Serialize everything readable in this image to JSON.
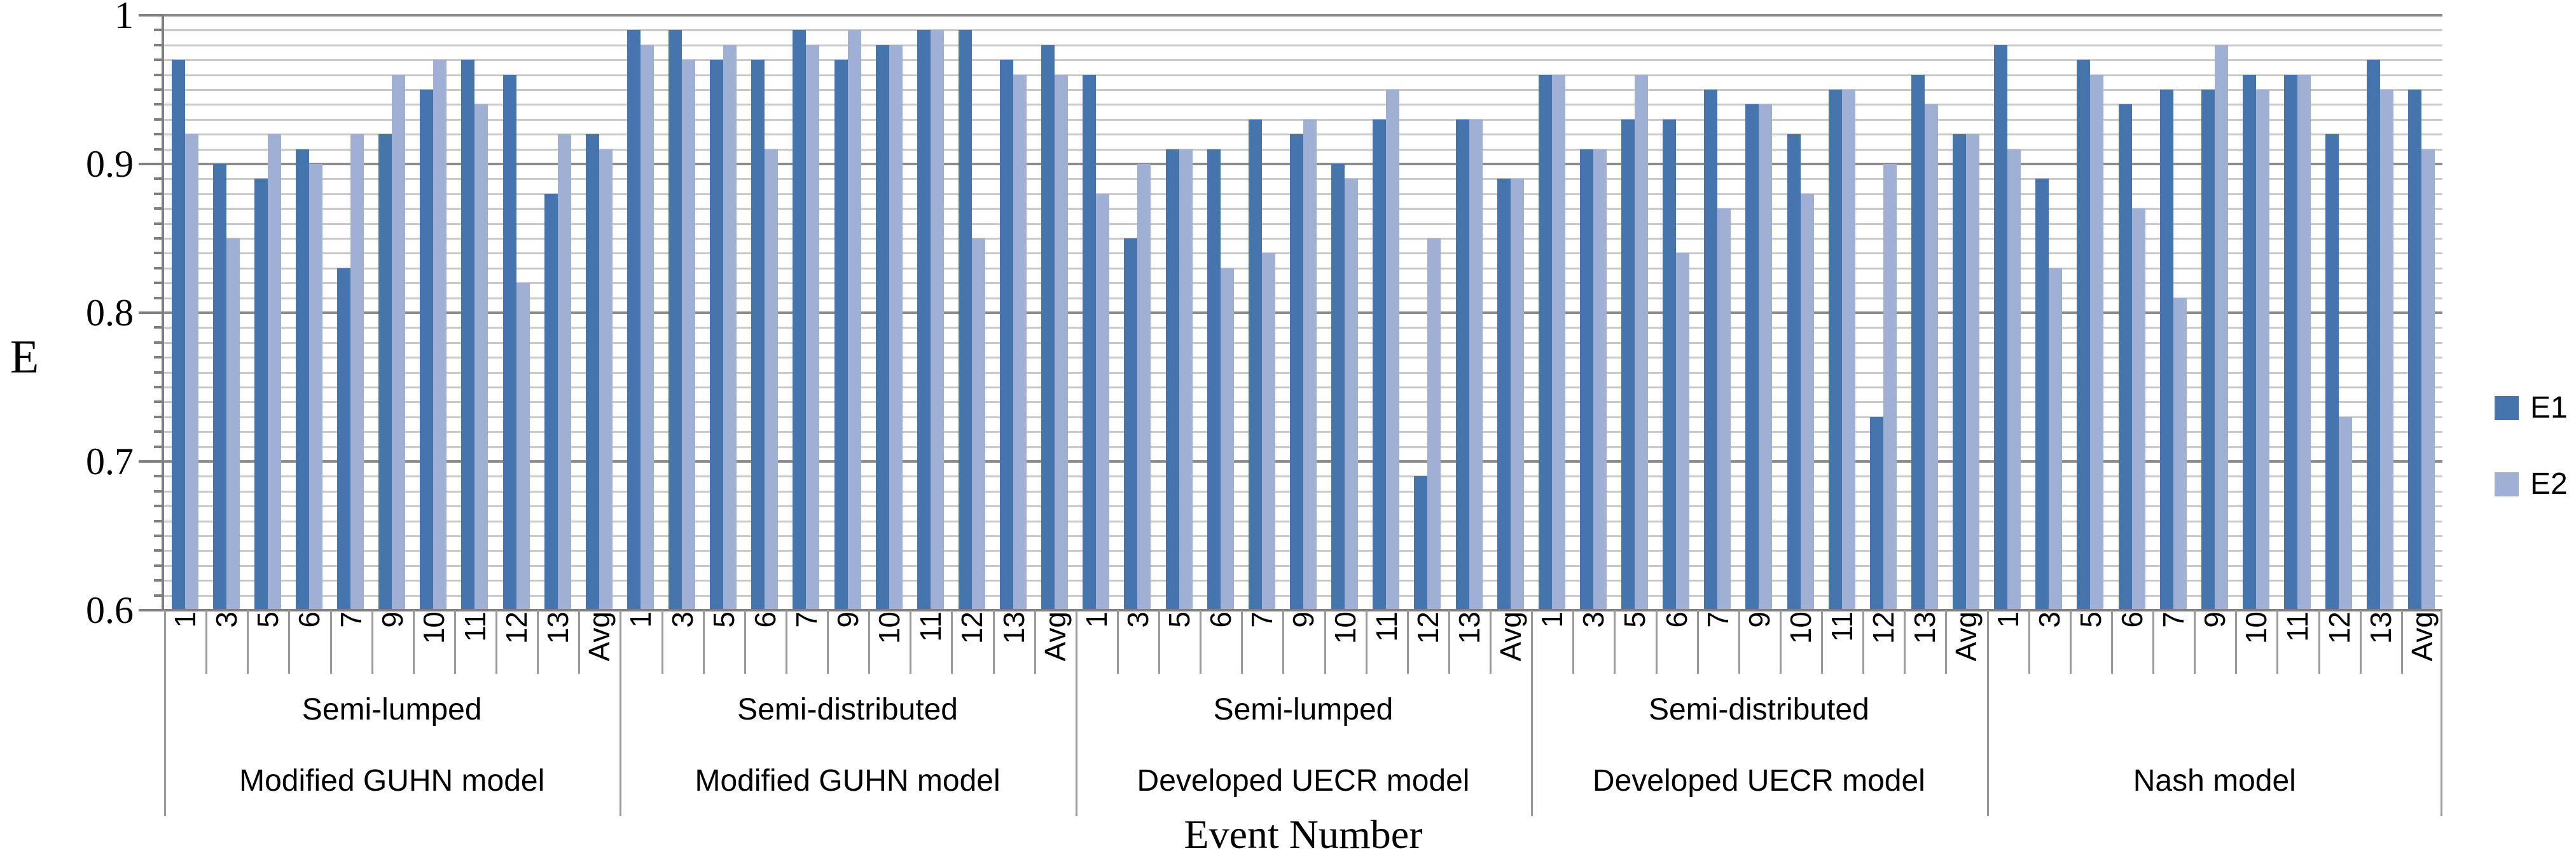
{
  "figure": {
    "background": "#ffffff"
  },
  "colors": {
    "e1": "#4575ac",
    "e2": "#a0b0d5",
    "minor_grid": "#c9c9c9",
    "major_grid": "#8c8c8c",
    "axis": "#7f7f7f",
    "cat_line": "#9a9a9a",
    "text": "#000000"
  },
  "y_axis": {
    "label": "E",
    "tick_labels": [
      "1",
      "0.9",
      "0.8",
      "0.7",
      "0.6"
    ],
    "tick_values": [
      1.0,
      0.9,
      0.8,
      0.7,
      0.6
    ],
    "min": 0.6,
    "max": 1.0,
    "minor_step": 0.01,
    "major_step": 0.1
  },
  "x_axis": {
    "title": "Event Number"
  },
  "legend": {
    "position": "right",
    "items": [
      {
        "label": "E1",
        "color": "#4575ac"
      },
      {
        "label": "E2",
        "color": "#a0b0d5"
      }
    ]
  },
  "chart_data": {
    "type": "bar",
    "title": "",
    "xlabel": "Event Number",
    "ylabel": "E",
    "ylim": [
      0.6,
      1.0
    ],
    "grid": "horizontal, minor every 0.01 (light gray), major every 0.1 (dark gray)",
    "legend_position": "right",
    "categories": [
      "1",
      "3",
      "5",
      "6",
      "7",
      "9",
      "10",
      "11",
      "12",
      "13",
      "Avg"
    ],
    "series_names": [
      "E1",
      "E2"
    ],
    "groups": [
      {
        "sub_label": "Semi-lumped",
        "model_label": "Modified GUHN model",
        "E1": [
          0.97,
          0.9,
          0.89,
          0.91,
          0.83,
          0.92,
          0.95,
          0.97,
          0.96,
          0.88,
          0.92
        ],
        "E2": [
          0.92,
          0.85,
          0.92,
          0.9,
          0.92,
          0.96,
          0.97,
          0.94,
          0.82,
          0.92,
          0.91
        ]
      },
      {
        "sub_label": "Semi-distributed",
        "model_label": "Modified GUHN model",
        "E1": [
          0.99,
          0.99,
          0.97,
          0.97,
          0.99,
          0.97,
          0.98,
          0.99,
          0.99,
          0.97,
          0.98
        ],
        "E2": [
          0.98,
          0.97,
          0.98,
          0.91,
          0.98,
          0.99,
          0.98,
          0.99,
          0.85,
          0.96,
          0.96
        ]
      },
      {
        "sub_label": "Semi-lumped",
        "model_label": "Developed UECR model",
        "E1": [
          0.96,
          0.85,
          0.91,
          0.91,
          0.93,
          0.92,
          0.9,
          0.93,
          0.69,
          0.93,
          0.89
        ],
        "E2": [
          0.88,
          0.9,
          0.91,
          0.83,
          0.84,
          0.93,
          0.89,
          0.95,
          0.85,
          0.93,
          0.89
        ]
      },
      {
        "sub_label": "Semi-distributed",
        "model_label": "Developed UECR model",
        "E1": [
          0.96,
          0.91,
          0.93,
          0.93,
          0.95,
          0.94,
          0.92,
          0.95,
          0.73,
          0.96,
          0.92
        ],
        "E2": [
          0.96,
          0.91,
          0.96,
          0.84,
          0.87,
          0.94,
          0.88,
          0.95,
          0.9,
          0.94,
          0.92
        ]
      },
      {
        "sub_label": "",
        "model_label": "Nash model",
        "E1": [
          0.98,
          0.89,
          0.97,
          0.94,
          0.95,
          0.95,
          0.96,
          0.96,
          0.92,
          0.97,
          0.95
        ],
        "E2": [
          0.91,
          0.83,
          0.96,
          0.87,
          0.81,
          0.98,
          0.95,
          0.96,
          0.73,
          0.95,
          0.91
        ]
      }
    ]
  }
}
